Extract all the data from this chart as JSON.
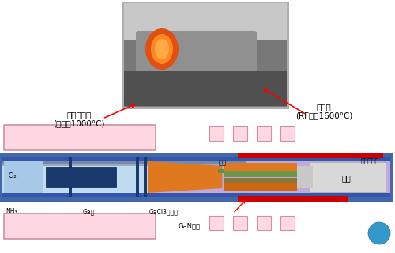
{
  "bg_color": "#ffffff",
  "label_source": "原料发生部\n(电炉～1000°C)",
  "label_growth": "生长部\n(RF炉～1600°C)",
  "label_nozzle": "喷嘴",
  "label_heated": "被加热物体",
  "label_base": "基座",
  "label_cl2": "Cl₂",
  "label_nh3": "NH₃",
  "label_ga": "Ga板",
  "label_gacl3": "GaCl3发生部",
  "label_gan": "GaN晶体",
  "colors": {
    "pink_fill": "#FFD8E4",
    "pink_border": "#D090A0",
    "blue_outer": "#4466AA",
    "blue_stripe": "#3355AA",
    "light_blue": "#B8D8F0",
    "light_blue2": "#C0DCF0",
    "purple_bg": "#C0A8D8",
    "orange": "#E07820",
    "orange2": "#CC6610",
    "green": "#5A9040",
    "green2": "#6A9848",
    "brown": "#A06820",
    "red": "#CC0000",
    "gray_base": "#C8C8C8",
    "gray_base2": "#D8D8D8",
    "dark_blue": "#1A3A6E",
    "mid_blue": "#2244AA",
    "cyan_circle": "#3388CC",
    "white": "#FFFFFF",
    "light_gray_stripe": "#8899BB",
    "olive": "#8B7540"
  }
}
